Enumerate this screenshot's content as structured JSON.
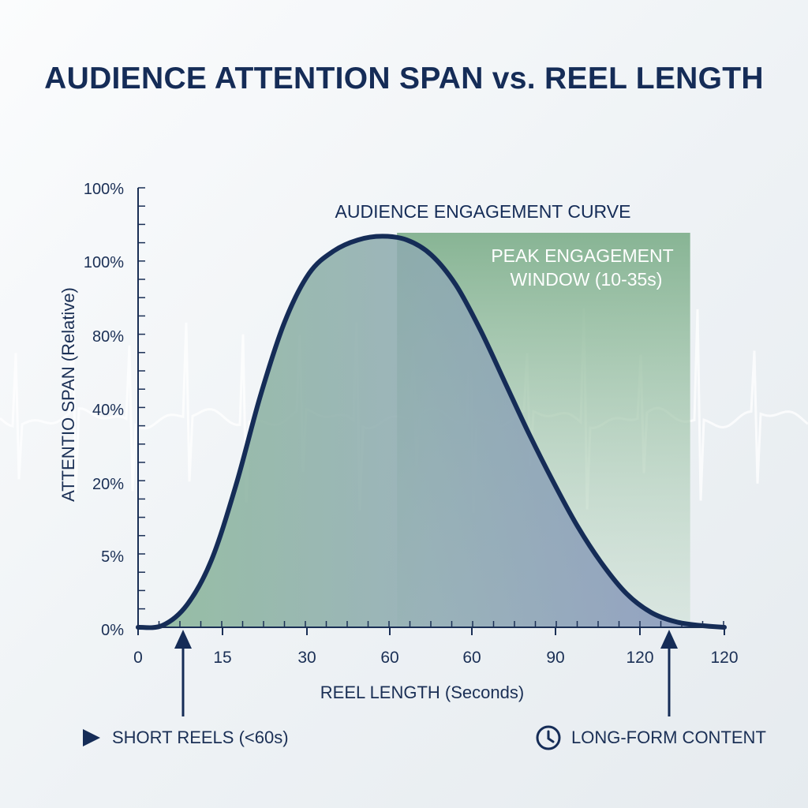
{
  "title": "AUDIENCE ATTENTION SPAN vs. REEL LENGTH",
  "chart_data": {
    "type": "area",
    "title": "AUDIENCE ATTENTION SPAN vs. REEL LENGTH",
    "curve_label": "AUDIENCE ENGAGEMENT CURVE",
    "xlabel": "REEL LENGTH (Seconds)",
    "ylabel": "ATTENTIO SPAN (Relative)",
    "x_tick_labels": [
      "0",
      "15",
      "30",
      "60",
      "60",
      "90",
      "120",
      "120"
    ],
    "y_tick_labels": [
      "0%",
      "5%",
      "20%",
      "40%",
      "80%",
      "100%",
      "100%"
    ],
    "grid": false,
    "series": [
      {
        "x": [
          0,
          5,
          10,
          15,
          20,
          25,
          30,
          35,
          40,
          45,
          50,
          55,
          60,
          65,
          70,
          75,
          80,
          85,
          90,
          95,
          100,
          105,
          110,
          115,
          120
        ],
        "y": [
          0,
          0.5,
          6,
          18,
          38,
          62,
          82,
          95,
          101,
          104,
          105,
          104,
          100,
          92,
          80,
          66,
          52,
          39,
          27,
          17,
          9,
          4,
          1.5,
          0.5,
          0
        ]
      }
    ],
    "highlight": {
      "label_line1": "PEAK ENGAGEMENT",
      "label_line2": "WINDOW (10-35s)",
      "color": "#7fb08d"
    },
    "colors": {
      "curve": "#152c57",
      "fill": "#8fb39a",
      "axis": "#1a2f55"
    }
  },
  "annotations": {
    "left": {
      "label": "SHORT REELS (<60s)",
      "icon": "play-icon"
    },
    "right": {
      "label": "LONG-FORM CONTENT",
      "icon": "clock-icon"
    }
  }
}
